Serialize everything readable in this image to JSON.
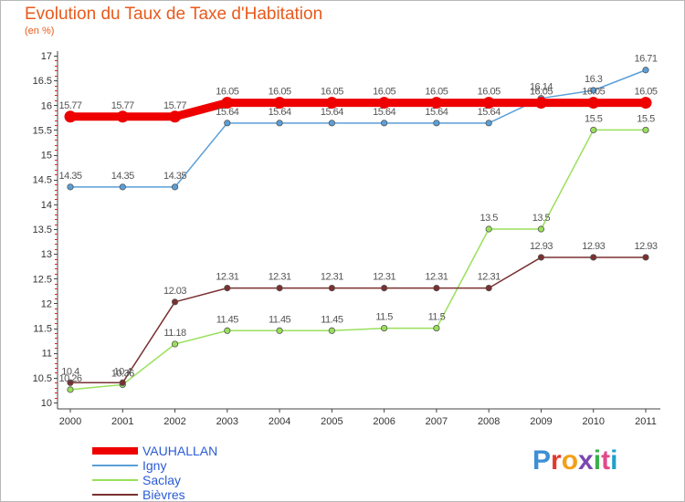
{
  "chart_data": {
    "type": "line",
    "title": "Evolution du Taux de Taxe d'Habitation",
    "subtitle": "(en %)",
    "x": [
      "2000",
      "2001",
      "2002",
      "2003",
      "2004",
      "2005",
      "2006",
      "2007",
      "2008",
      "2009",
      "2010",
      "2011"
    ],
    "ylim": [
      10,
      17
    ],
    "yticks": [
      "10",
      "10.5",
      "11",
      "11.5",
      "12",
      "12.5",
      "13",
      "13.5",
      "14",
      "14.5",
      "15",
      "15.5",
      "16",
      "16.5",
      "17"
    ],
    "grid": false,
    "series": [
      {
        "name": "VAUHALLAN",
        "color": "#ee0000",
        "values": [
          15.77,
          15.77,
          15.77,
          16.05,
          16.05,
          16.05,
          16.05,
          16.05,
          16.05,
          16.05,
          16.05,
          16.05
        ],
        "labels": [
          "15.77",
          "15.77",
          "15.77",
          "16.05",
          "16.05",
          "16.05",
          "16.05",
          "16.05",
          "16.05",
          "16.05",
          "16.05",
          "16.05"
        ]
      },
      {
        "name": "Igny",
        "color": "#5b9fd8",
        "values": [
          14.35,
          14.35,
          14.35,
          15.64,
          15.64,
          15.64,
          15.64,
          15.64,
          15.64,
          16.14,
          16.3,
          16.71
        ],
        "labels": [
          "14.35",
          "14.35",
          "14.35",
          "15.64",
          "15.64",
          "15.64",
          "15.64",
          "15.64",
          "15.64",
          "16.14",
          "16.3",
          "16.71"
        ]
      },
      {
        "name": "Saclay",
        "color": "#99e05a",
        "values": [
          10.26,
          10.36,
          11.18,
          11.45,
          11.45,
          11.45,
          11.5,
          11.5,
          13.5,
          13.5,
          15.5,
          15.5
        ],
        "labels": [
          "10.26",
          "10.36",
          "11.18",
          "11.45",
          "11.45",
          "11.45",
          "11.5",
          "11.5",
          "13.5",
          "13.5",
          "15.5",
          "15.5"
        ]
      },
      {
        "name": "Bièvres",
        "color": "#7a3030",
        "values": [
          10.4,
          10.4,
          12.03,
          12.31,
          12.31,
          12.31,
          12.31,
          12.31,
          12.31,
          12.93,
          12.93,
          12.93
        ],
        "labels": [
          "10.4",
          "10.4",
          "12.03",
          "12.31",
          "12.31",
          "12.31",
          "12.31",
          "12.31",
          "12.31",
          "12.93",
          "12.93",
          "12.93"
        ]
      }
    ]
  },
  "logo": {
    "letters": [
      "P",
      "r",
      "o",
      "x",
      "i",
      "t",
      "i"
    ],
    "colors": [
      "#3d8fd6",
      "#e03a2f",
      "#f2a019",
      "#7a48b0",
      "#3bb04a",
      "#e04a8a",
      "#20a0c8"
    ]
  }
}
